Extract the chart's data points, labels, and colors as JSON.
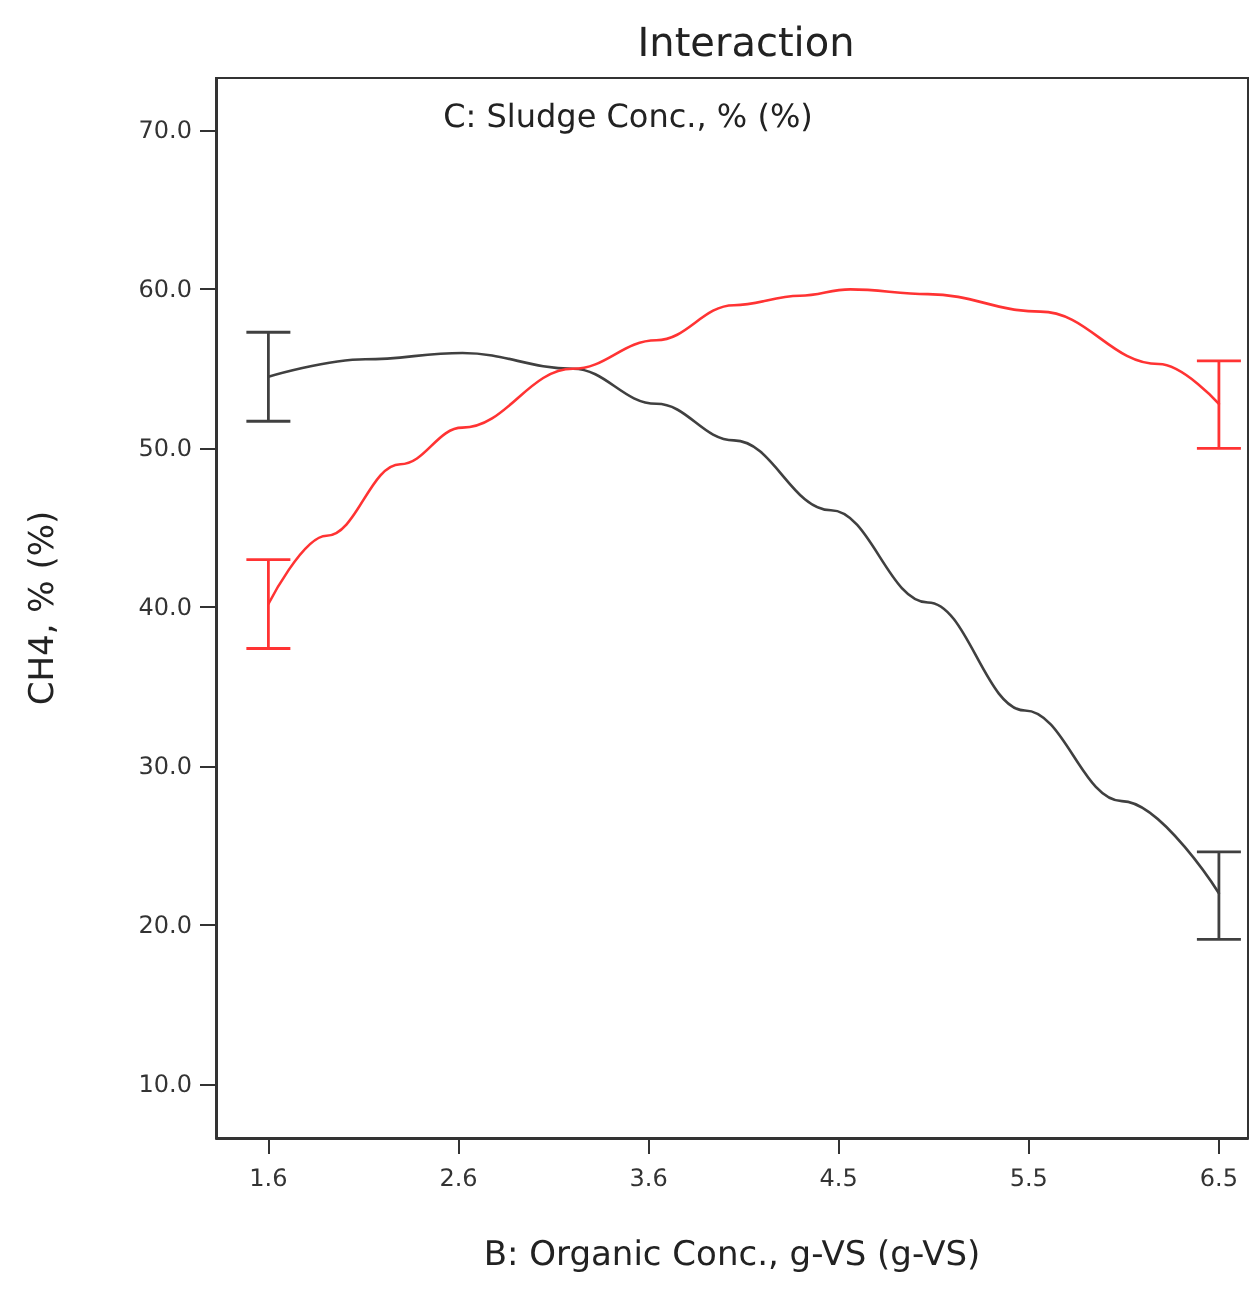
{
  "chart_data": {
    "type": "line",
    "title": "Interaction",
    "xlabel": "B: Organic Conc., g-VS (g-VS)",
    "ylabel": "CH4, % (%)",
    "annotations": [
      "C: Sludge Conc., % (%)"
    ],
    "xlim": [
      1.33,
      6.65
    ],
    "xticks": [
      {
        "value": 1.6,
        "label": "1.6"
      },
      {
        "value": 2.58,
        "label": "2.6"
      },
      {
        "value": 3.56,
        "label": "3.6"
      },
      {
        "value": 4.54,
        "label": "4.5"
      },
      {
        "value": 5.52,
        "label": "5.5"
      },
      {
        "value": 6.5,
        "label": "6.5"
      }
    ],
    "ylim": [
      6.6,
      73.3
    ],
    "yticks": [
      {
        "value": 10,
        "label": "10.0"
      },
      {
        "value": 20,
        "label": "20.0"
      },
      {
        "value": 30,
        "label": "30.0"
      },
      {
        "value": 40,
        "label": "40.0"
      },
      {
        "value": 50,
        "label": "50.0"
      },
      {
        "value": 60,
        "label": "60.0"
      },
      {
        "value": 70,
        "label": "70.0"
      }
    ],
    "grid": false,
    "marker": "none",
    "line_style": "solid",
    "series": [
      {
        "color": "#404040",
        "x": [
          1.6,
          2.1,
          2.6,
          3.17,
          3.6,
          4.0,
          4.5,
          5.0,
          5.5,
          6.0,
          6.5
        ],
        "values": [
          54.5,
          55.6,
          56.0,
          55.0,
          52.8,
          50.5,
          46.1,
          40.3,
          33.5,
          27.8,
          22.0
        ],
        "errors": [
          [
            51.7,
            57.3
          ],
          null,
          null,
          null,
          null,
          null,
          null,
          null,
          null,
          null,
          [
            19.1,
            24.6
          ]
        ]
      },
      {
        "color": "#ff3333",
        "x": [
          1.6,
          1.9,
          2.28,
          2.6,
          3.17,
          3.6,
          4.0,
          4.34,
          4.6,
          5.0,
          5.58,
          6.19,
          6.5
        ],
        "values": [
          40.2,
          44.5,
          49.0,
          51.3,
          55.0,
          56.8,
          59.0,
          59.6,
          60.0,
          59.7,
          58.6,
          55.3,
          52.8
        ],
        "errors": [
          [
            37.4,
            43.0
          ],
          null,
          null,
          null,
          null,
          null,
          null,
          null,
          null,
          null,
          null,
          null,
          [
            50.0,
            55.5
          ]
        ]
      }
    ]
  }
}
